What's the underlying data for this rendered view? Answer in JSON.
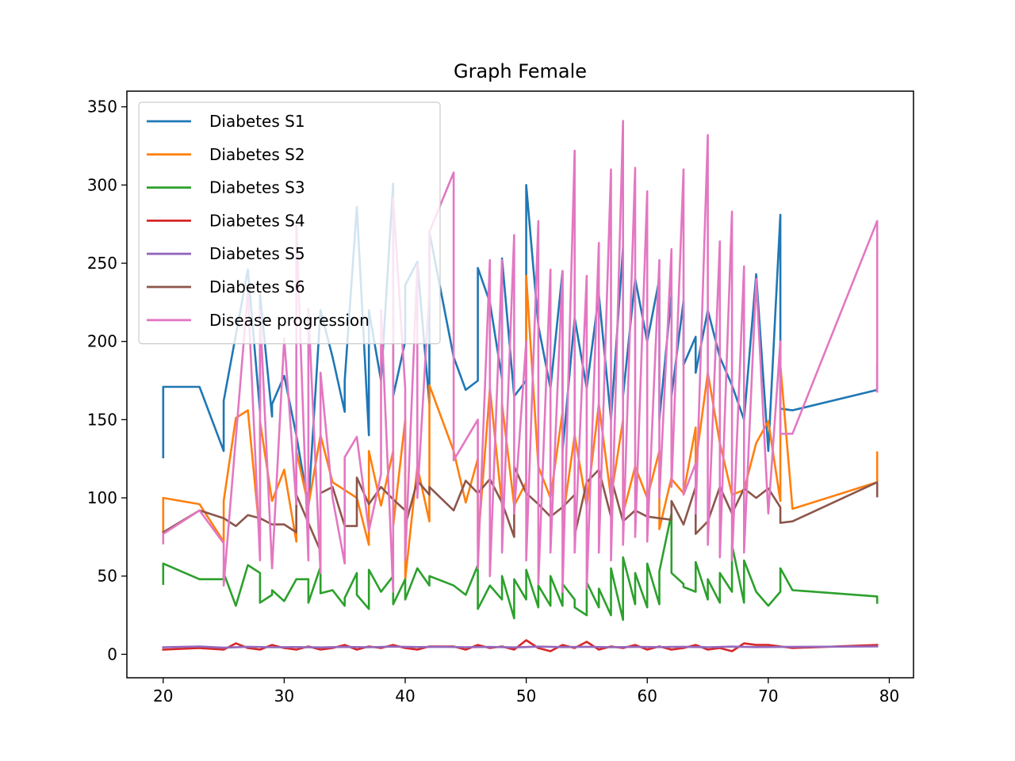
{
  "chart_data": {
    "type": "line",
    "title": "Graph Female",
    "xlabel": "",
    "ylabel": "",
    "xlim": [
      17,
      82
    ],
    "ylim": [
      -15,
      360
    ],
    "xticks": [
      20,
      30,
      40,
      50,
      60,
      70,
      80
    ],
    "yticks": [
      0,
      50,
      100,
      150,
      200,
      250,
      300,
      350
    ],
    "legend_position": "upper-left",
    "grid": false,
    "series": [
      {
        "name": "Diabetes S1",
        "color": "#1f77b4",
        "x": [
          20,
          20,
          23,
          25,
          25,
          27,
          28,
          28,
          29,
          29,
          30,
          31,
          32,
          33,
          34,
          35,
          35,
          36,
          37,
          37,
          38,
          39,
          39,
          40,
          40,
          41,
          42,
          42,
          44,
          45,
          46,
          46,
          47,
          48,
          48,
          49,
          50,
          50,
          51,
          52,
          53,
          53,
          54,
          55,
          56,
          57,
          58,
          58,
          59,
          60,
          61,
          61,
          62,
          62,
          63,
          63,
          64,
          64,
          65,
          66,
          67,
          68,
          69,
          70,
          71,
          71,
          72,
          79,
          79
        ],
        "y": [
          126,
          171,
          171,
          130,
          162,
          246,
          155,
          230,
          152,
          160,
          178,
          140,
          95,
          220,
          190,
          155,
          175,
          286,
          140,
          220,
          175,
          301,
          165,
          200,
          236,
          251,
          160,
          270,
          190,
          169,
          175,
          247,
          225,
          176,
          253,
          165,
          175,
          300,
          210,
          170,
          245,
          130,
          215,
          170,
          230,
          150,
          260,
          165,
          240,
          200,
          240,
          150,
          230,
          165,
          226,
          185,
          203,
          180,
          220,
          190,
          172,
          150,
          243,
          130,
          281,
          157,
          156,
          169,
          185
        ]
      },
      {
        "name": "Diabetes S2",
        "color": "#ff7f0e",
        "x": [
          20,
          20,
          23,
          25,
          25,
          26,
          27,
          28,
          28,
          29,
          30,
          31,
          31,
          32,
          33,
          34,
          35,
          36,
          37,
          37,
          38,
          39,
          39,
          40,
          40,
          41,
          42,
          42,
          44,
          45,
          46,
          46,
          47,
          48,
          48,
          49,
          50,
          50,
          51,
          52,
          53,
          53,
          54,
          55,
          56,
          57,
          58,
          58,
          59,
          60,
          61,
          61,
          62,
          62,
          63,
          64,
          64,
          65,
          66,
          67,
          68,
          69,
          70,
          71,
          71,
          72,
          79,
          79
        ],
        "y": [
          78,
          100,
          96,
          72,
          98,
          151,
          156,
          75,
          149,
          98,
          118,
          72,
          130,
          95,
          140,
          110,
          105,
          100,
          70,
          130,
          95,
          130,
          82,
          150,
          48,
          120,
          85,
          172,
          130,
          97,
          125,
          70,
          170,
          95,
          160,
          95,
          110,
          242,
          120,
          100,
          155,
          85,
          140,
          95,
          160,
          100,
          150,
          90,
          120,
          100,
          130,
          80,
          113,
          112,
          103,
          145,
          122,
          180,
          135,
          102,
          105,
          135,
          149,
          98,
          185,
          93,
          110,
          129
        ]
      },
      {
        "name": "Diabetes S3",
        "color": "#2ca02c",
        "x": [
          20,
          20,
          23,
          25,
          25,
          26,
          27,
          28,
          28,
          29,
          29,
          30,
          31,
          32,
          32,
          33,
          33,
          34,
          35,
          35,
          36,
          36,
          37,
          37,
          38,
          39,
          39,
          40,
          40,
          41,
          42,
          42,
          44,
          45,
          46,
          46,
          47,
          48,
          48,
          49,
          49,
          50,
          50,
          51,
          51,
          52,
          52,
          53,
          53,
          54,
          54,
          55,
          55,
          56,
          56,
          57,
          57,
          58,
          58,
          59,
          59,
          60,
          60,
          61,
          61,
          62,
          62,
          63,
          63,
          64,
          64,
          65,
          65,
          66,
          66,
          67,
          67,
          68,
          68,
          69,
          70,
          71,
          71,
          72,
          79,
          79
        ],
        "y": [
          45,
          58,
          48,
          48,
          52,
          31,
          57,
          52,
          33,
          38,
          41,
          34,
          48,
          48,
          33,
          56,
          39,
          41,
          31,
          36,
          52,
          38,
          29,
          54,
          40,
          50,
          32,
          48,
          35,
          55,
          44,
          50,
          44,
          38,
          57,
          29,
          44,
          35,
          50,
          23,
          48,
          35,
          54,
          30,
          44,
          31,
          50,
          31,
          45,
          35,
          30,
          25,
          46,
          30,
          42,
          25,
          55,
          22,
          62,
          32,
          52,
          30,
          58,
          32,
          53,
          90,
          52,
          45,
          43,
          40,
          59,
          35,
          48,
          33,
          52,
          40,
          70,
          33,
          60,
          40,
          31,
          40,
          55,
          41,
          37,
          33
        ]
      },
      {
        "name": "Diabetes S4",
        "color": "#d62728",
        "x": [
          20,
          23,
          25,
          26,
          27,
          28,
          29,
          30,
          31,
          32,
          33,
          34,
          35,
          36,
          37,
          38,
          39,
          40,
          41,
          42,
          44,
          45,
          46,
          47,
          48,
          49,
          50,
          51,
          52,
          53,
          54,
          55,
          56,
          57,
          58,
          59,
          60,
          61,
          62,
          63,
          64,
          65,
          66,
          67,
          68,
          69,
          70,
          71,
          72,
          79
        ],
        "y": [
          3,
          4,
          3,
          7,
          4,
          3,
          6,
          4,
          3,
          5,
          3,
          4,
          6,
          3,
          5,
          4,
          6,
          4,
          3,
          5,
          5,
          3,
          6,
          4,
          5,
          3,
          9,
          4,
          2,
          6,
          4,
          8,
          3,
          5,
          4,
          6,
          3,
          5,
          3,
          4,
          6,
          3,
          4,
          2,
          7,
          6,
          6,
          5,
          4,
          6
        ]
      },
      {
        "name": "Diabetes S5",
        "color": "#9467bd",
        "x": [
          20,
          23,
          25,
          27,
          29,
          31,
          33,
          35,
          37,
          39,
          41,
          43,
          45,
          47,
          49,
          51,
          53,
          55,
          57,
          59,
          61,
          63,
          65,
          67,
          69,
          71,
          73,
          79
        ],
        "y": [
          4.5,
          5,
          4.2,
          4.8,
          4.5,
          4.6,
          4.4,
          4.7,
          4.5,
          4.9,
          4.6,
          4.8,
          4.5,
          4.7,
          4.4,
          4.9,
          4.6,
          4.8,
          4.5,
          4.7,
          4.6,
          4.8,
          4.5,
          4.9,
          4.6,
          4.7,
          4.8,
          5
        ]
      },
      {
        "name": "Diabetes S6",
        "color": "#8c564b",
        "x": [
          20,
          23,
          25,
          26,
          27,
          28,
          29,
          30,
          31,
          31,
          32,
          33,
          33,
          34,
          35,
          36,
          36,
          37,
          38,
          39,
          40,
          40,
          41,
          42,
          42,
          44,
          45,
          46,
          47,
          48,
          49,
          49,
          50,
          51,
          52,
          53,
          54,
          54,
          55,
          56,
          57,
          57,
          58,
          59,
          60,
          61,
          62,
          62,
          63,
          64,
          64,
          65,
          66,
          67,
          68,
          69,
          70,
          71,
          71,
          72,
          79,
          79
        ],
        "y": [
          78,
          92,
          87,
          82,
          89,
          87,
          83,
          83,
          78,
          102,
          84,
          66,
          103,
          107,
          82,
          82,
          113,
          96,
          107,
          99,
          92,
          82,
          111,
          102,
          107,
          92,
          111,
          103,
          112,
          97,
          75,
          120,
          103,
          96,
          88,
          94,
          102,
          76,
          110,
          118,
          88,
          113,
          85,
          92,
          88,
          87,
          86,
          98,
          83,
          107,
          77,
          85,
          107,
          90,
          106,
          100,
          106,
          94,
          84,
          85,
          110,
          101
        ]
      },
      {
        "name": "Disease progression",
        "color": "#e377c2",
        "x": [
          20,
          20,
          23,
          25,
          25,
          27,
          28,
          28,
          29,
          30,
          31,
          31,
          32,
          32,
          33,
          33,
          34,
          35,
          35,
          36,
          37,
          38,
          38,
          39,
          39,
          40,
          40,
          41,
          41,
          42,
          42,
          44,
          44,
          46,
          46,
          47,
          47,
          48,
          48,
          49,
          49,
          50,
          50,
          51,
          51,
          52,
          52,
          53,
          53,
          54,
          54,
          55,
          55,
          56,
          56,
          57,
          57,
          58,
          58,
          59,
          59,
          60,
          60,
          61,
          61,
          62,
          62,
          63,
          63,
          64,
          64,
          65,
          65,
          66,
          66,
          67,
          67,
          68,
          68,
          69,
          70,
          71,
          71,
          72,
          79,
          79
        ],
        "y": [
          71,
          77,
          92,
          71,
          44,
          232,
          60,
          220,
          55,
          202,
          96,
          275,
          60,
          221,
          52,
          180,
          100,
          58,
          126,
          139,
          79,
          115,
          220,
          40,
          292,
          170,
          60,
          249,
          100,
          233,
          270,
          308,
          124,
          150,
          55,
          252,
          50,
          252,
          65,
          268,
          90,
          200,
          60,
          277,
          45,
          246,
          65,
          245,
          40,
          322,
          65,
          242,
          42,
          263,
          65,
          310,
          60,
          341,
          70,
          311,
          75,
          296,
          72,
          252,
          100,
          259,
          107,
          310,
          102,
          122,
          90,
          332,
          70,
          264,
          62,
          283,
          60,
          248,
          65,
          240,
          90,
          200,
          141,
          141,
          277,
          168
        ]
      }
    ]
  }
}
